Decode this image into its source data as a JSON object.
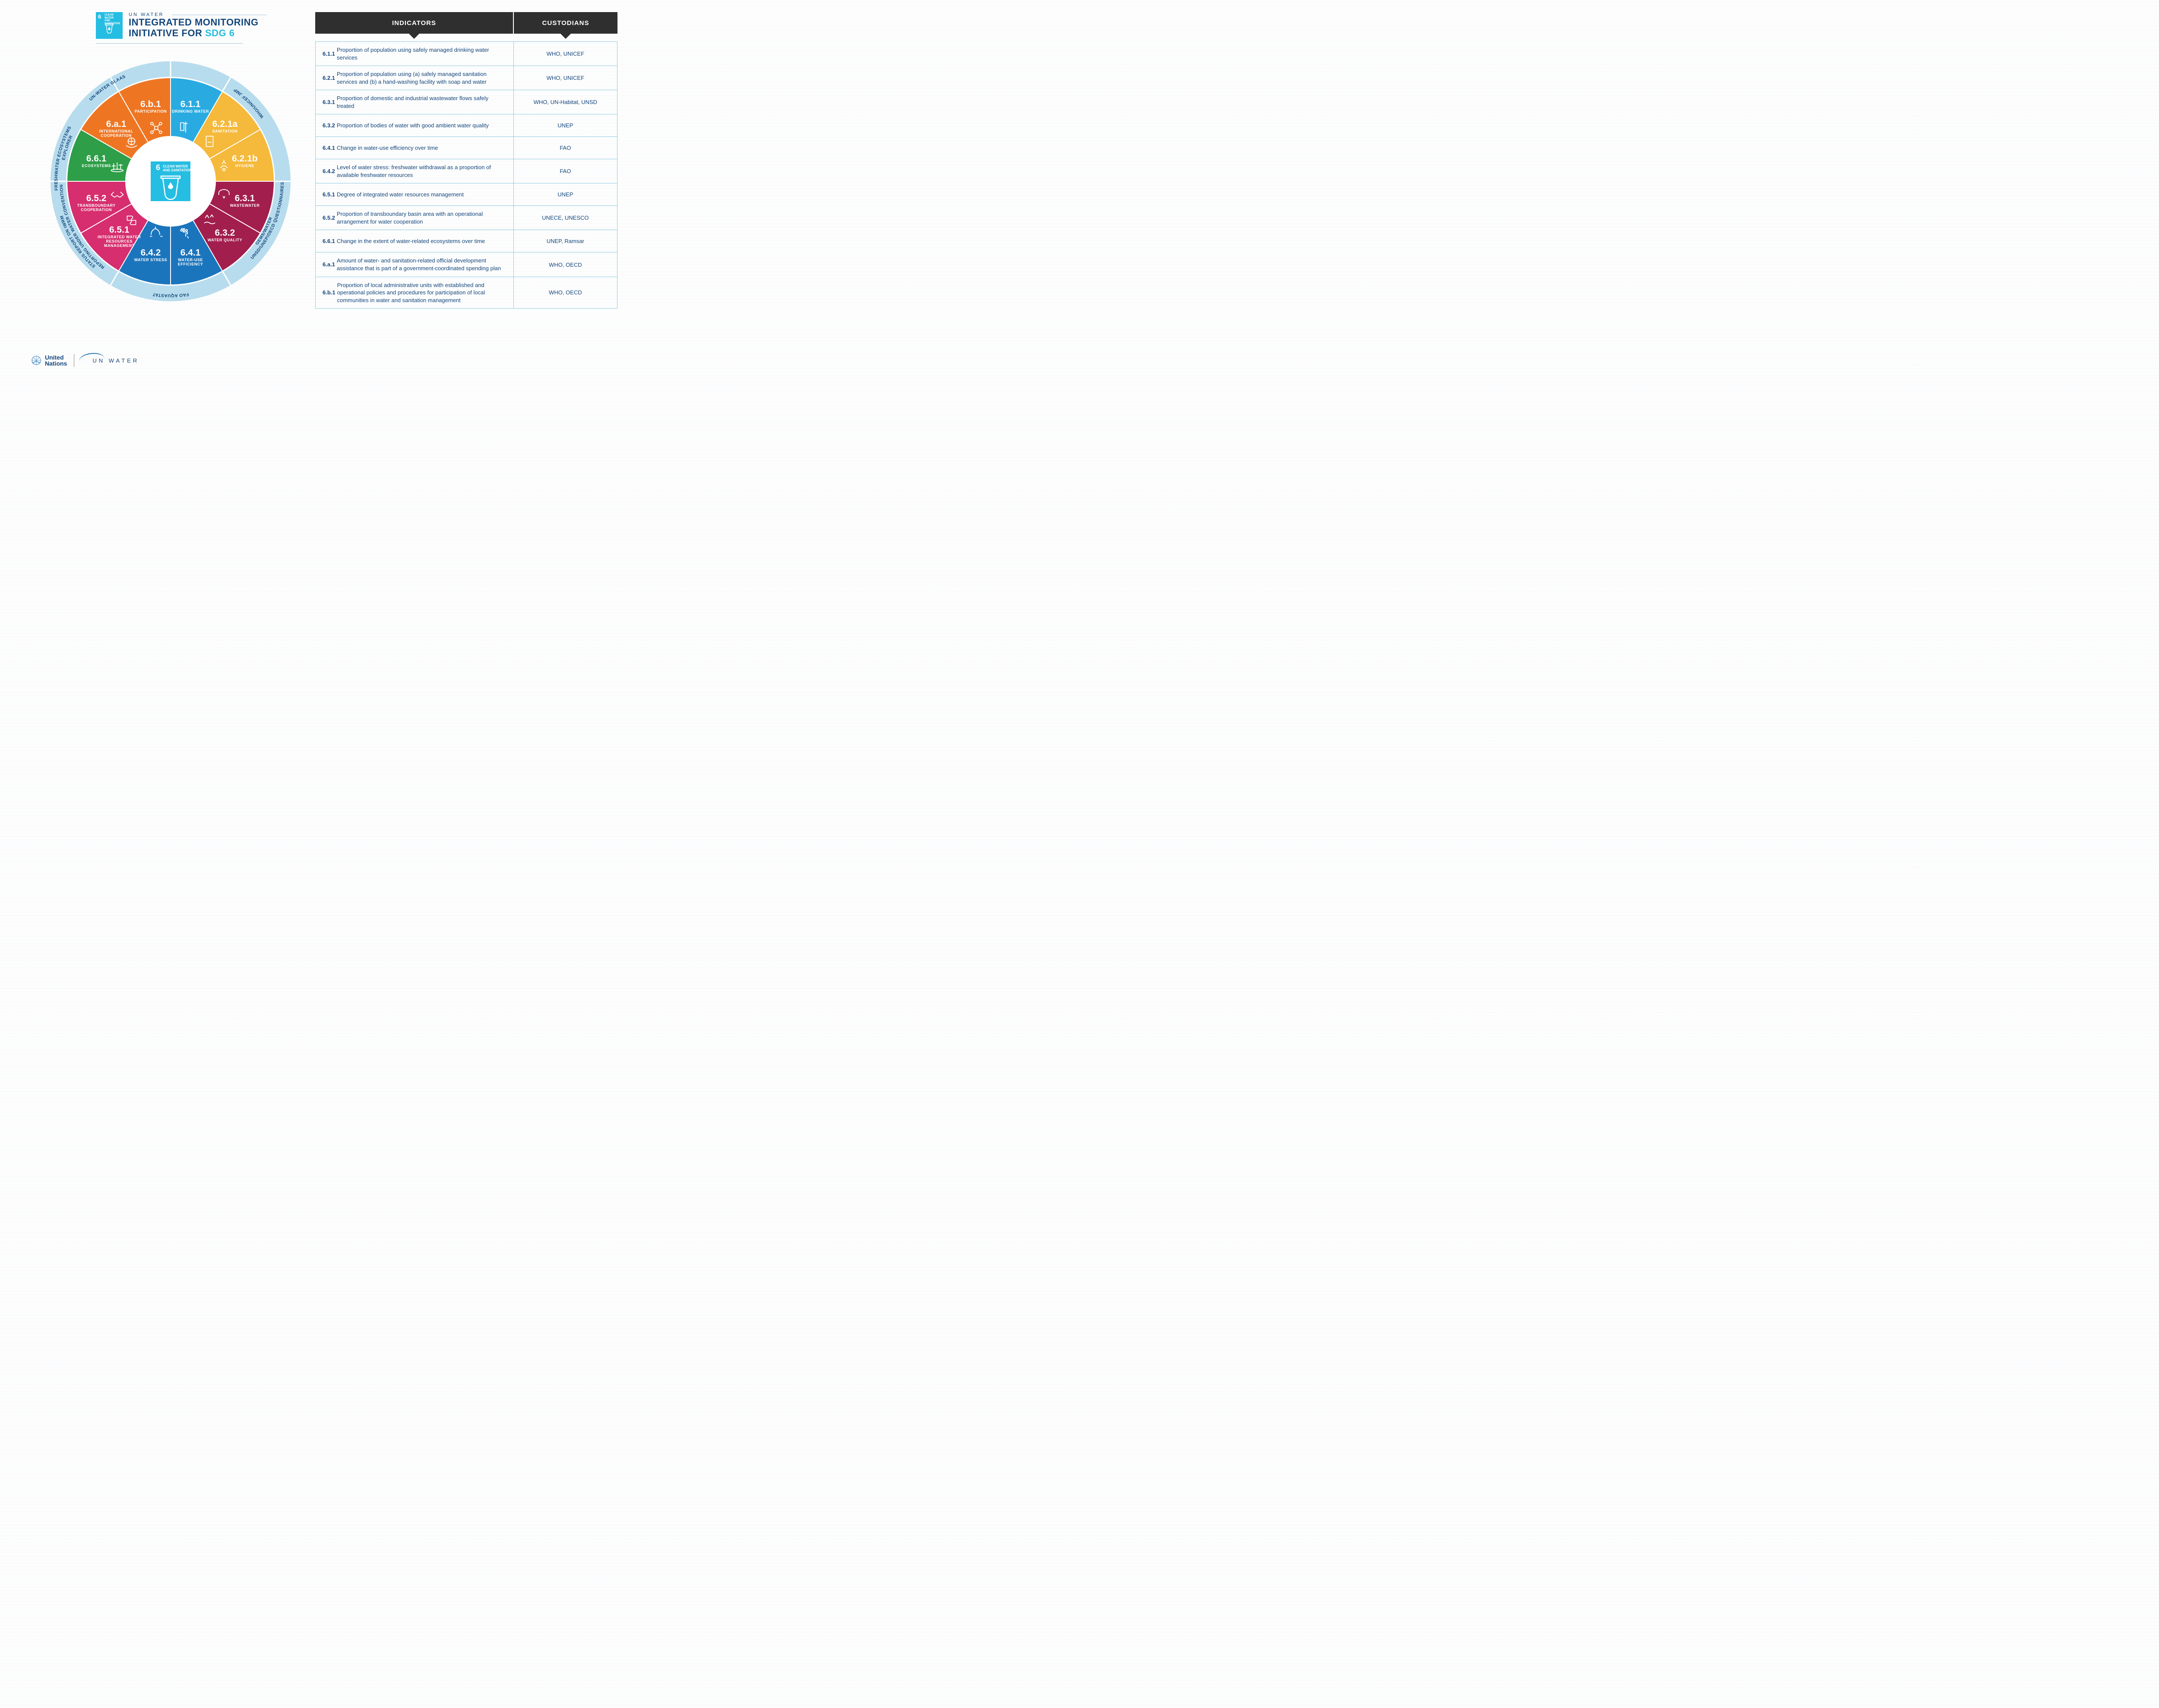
{
  "header": {
    "brand_small": "UN WATER",
    "line2": "INTEGRATED MONITORING",
    "line3_a": "INITIATIVE FOR ",
    "line3_b": "SDG 6",
    "badge_num": "6",
    "badge_txt": "CLEAN WATER\nAND SANITATION"
  },
  "wheel": {
    "center_num": "6",
    "center_txt": "CLEAN WATER\nAND SANITATION",
    "outer_ring_color": "#b7dced",
    "slices": [
      {
        "code": "6.1.1",
        "label": "DRINKING WATER",
        "color": "#29abe2",
        "icon": "water-glass"
      },
      {
        "code": "6.2.1a",
        "label": "SANITATION",
        "color": "#f5b93b",
        "icon": "toilet"
      },
      {
        "code": "6.2.1b",
        "label": "HYGIENE",
        "color": "#f5b93b",
        "icon": "handwash"
      },
      {
        "code": "6.3.1",
        "label": "WASTEWATER",
        "color": "#a21e4d",
        "icon": "pipe"
      },
      {
        "code": "6.3.2",
        "label": "WATER QUALITY",
        "color": "#a21e4d",
        "icon": "river"
      },
      {
        "code": "6.4.1",
        "label": "WATER-USE\nEFFICIENCY",
        "color": "#1b75bc",
        "icon": "tap"
      },
      {
        "code": "6.4.2",
        "label": "WATER STRESS",
        "color": "#1b75bc",
        "icon": "pump"
      },
      {
        "code": "6.5.1",
        "label": "INTEGRATED WATER\nRESOURCES\nMANAGEMENT",
        "color": "#d62e6e",
        "icon": "puzzle"
      },
      {
        "code": "6.5.2",
        "label": "TRANSBOUNDARY\nCOOPERATION",
        "color": "#d62e6e",
        "icon": "handshake"
      },
      {
        "code": "6.6.1",
        "label": "ECOSYSTEMS",
        "color": "#2e9e48",
        "icon": "reeds"
      },
      {
        "code": "6.a.1",
        "label": "INTERNATIONAL\nCOOPERATION",
        "color": "#ee7623",
        "icon": "globe-hands"
      },
      {
        "code": "6.b.1",
        "label": "PARTICIPATION",
        "color": "#ee7623",
        "icon": "network"
      }
    ],
    "ring_labels": [
      {
        "text": "WHO/UNICEF JMP",
        "angle": 45
      },
      {
        "text": "UNSD/UNEP/OECD QUESTIONNAIRES",
        "angle": 112
      },
      {
        "text": "GEMS/WATER",
        "angle": 118,
        "inner": true
      },
      {
        "text": "FAO AQUASTAT",
        "angle": 180
      },
      {
        "text": "STATUS REPORT ON IWRM",
        "angle": 237
      },
      {
        "text": "REPORTING UNDER WATER CONVENTION",
        "angle": 243,
        "inner": true
      },
      {
        "text": "FRESHWATER ECOSYSTEMS",
        "angle": 282
      },
      {
        "text": "EXPLORER",
        "angle": 288,
        "inner": true
      },
      {
        "text": "UN-WATER GLAAS",
        "angle": 326
      }
    ]
  },
  "table": {
    "header_col1": "INDICATORS",
    "header_col2": "CUSTODIANS",
    "header_bg": "#2f2f2f",
    "border_color": "#8fc9e0",
    "text_color": "#14477c",
    "rows": [
      {
        "code": "6.1.1",
        "desc": "Proportion of population using safely managed drinking water services",
        "cust": "WHO, UNICEF"
      },
      {
        "code": "6.2.1",
        "desc": "Proportion of population using (a) safely managed sanitation services and (b) a hand-washing facility with soap and water",
        "cust": "WHO, UNICEF"
      },
      {
        "code": "6.3.1",
        "desc": "Proportion of domestic and industrial wastewater flows safely treated",
        "cust": "WHO, UN-Habitat, UNSD"
      },
      {
        "code": "6.3.2",
        "desc": "Proportion of bodies of water with good ambient water quality",
        "cust": "UNEP"
      },
      {
        "code": "6.4.1",
        "desc": "Change in water-use efficiency over time",
        "cust": "FAO"
      },
      {
        "code": "6.4.2",
        "desc": "Level of water stress: freshwater withdrawal as a proportion of available freshwater resources",
        "cust": "FAO"
      },
      {
        "code": "6.5.1",
        "desc": "Degree of integrated water resources management",
        "cust": "UNEP"
      },
      {
        "code": "6.5.2",
        "desc": "Proportion of transboundary basin area with an operational arrangement for water cooperation",
        "cust": "UNECE, UNESCO"
      },
      {
        "code": "6.6.1",
        "desc": "Change in the extent of water-related ecosystems over time",
        "cust": "UNEP, Ramsar"
      },
      {
        "code": "6.a.1",
        "desc": "Amount of water- and sanitation-related official development assistance that is part of a government-coordinated spending plan",
        "cust": "WHO, OECD"
      },
      {
        "code": "6.b.1",
        "desc": "Proportion of local administrative units with established and operational policies and procedures for participation of local communities in water and sanitation management",
        "cust": "WHO, OECD"
      }
    ]
  },
  "footer": {
    "un_label": "United\nNations",
    "unwater_label": "UN WATER"
  }
}
